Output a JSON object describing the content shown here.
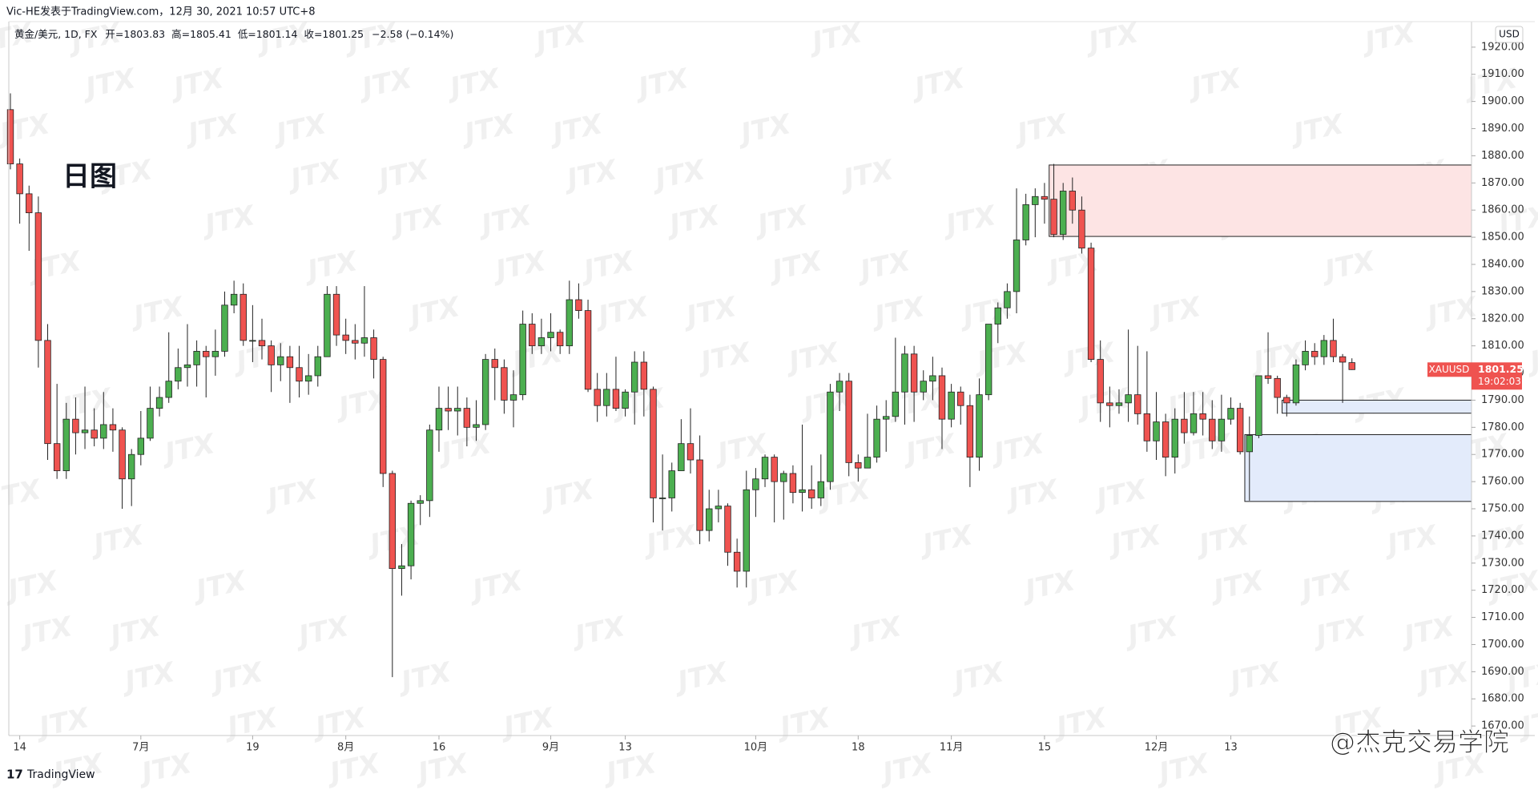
{
  "header": "Vic-HE发表于TradingView.com，12月 30, 2021 10:57 UTC+8",
  "legend": {
    "symbol": "黄金/美元, 1D, FX",
    "open_label": "开=",
    "high_label": "高=",
    "low_label": "低=",
    "close_label": "收=",
    "change": "−2.58 (−0.14%)"
  },
  "annotation": "日图",
  "currency": "USD",
  "symbol_tag": "XAUUSD",
  "countdown": "19:02:03",
  "watermark": "JTX",
  "brand": "TradingView",
  "credit": "@杰克交易学院",
  "chart_data": {
    "type": "candlestick",
    "categories": [
      null,
      "14",
      null,
      null,
      null,
      null,
      null,
      null,
      null,
      null,
      null,
      null,
      null,
      null,
      "7月",
      null,
      null,
      null,
      null,
      null,
      null,
      null,
      null,
      null,
      null,
      null,
      "19",
      null,
      null,
      null,
      null,
      null,
      null,
      null,
      null,
      null,
      "8月",
      null,
      null,
      null,
      null,
      null,
      null,
      null,
      null,
      null,
      "16",
      null,
      null,
      null,
      null,
      null,
      null,
      null,
      null,
      null,
      null,
      null,
      "9月",
      null,
      null,
      null,
      null,
      null,
      null,
      null,
      "13",
      null,
      null,
      null,
      null,
      null,
      null,
      null,
      null,
      null,
      null,
      null,
      null,
      null,
      "10月",
      null,
      null,
      null,
      null,
      null,
      null,
      null,
      null,
      null,
      null,
      "18",
      null,
      null,
      null,
      null,
      null,
      null,
      null,
      null,
      null,
      "11月",
      null,
      null,
      null,
      null,
      null,
      null,
      null,
      null,
      null,
      "15",
      null,
      null,
      null,
      null,
      null,
      null,
      null,
      null,
      null,
      null,
      null,
      "12月",
      null,
      null,
      null,
      null,
      null,
      null,
      null,
      "13",
      null,
      null,
      null,
      null,
      null,
      null,
      null,
      null,
      null,
      null,
      null,
      null,
      null
    ],
    "open": [
      1897,
      1877,
      1866,
      1859,
      1812,
      1774,
      1764,
      1783,
      1778,
      1779,
      1776,
      1781,
      1779,
      1761,
      1770,
      1776,
      1787,
      1791,
      1797,
      1802,
      1803,
      1808,
      1806,
      1808,
      1825,
      1829,
      1812,
      1812,
      1810,
      1803,
      1806,
      1802,
      1797,
      1799,
      1806,
      1829,
      1814,
      1812,
      1811,
      1813,
      1805,
      1763,
      1728,
      1729,
      1752,
      1753,
      1779,
      1787,
      1786,
      1787,
      1780,
      1781,
      1805,
      1802,
      1790,
      1792,
      1818,
      1810,
      1813,
      1815,
      1810,
      1827,
      1823,
      1794,
      1788,
      1794,
      1787,
      1793,
      1804,
      1794,
      1754,
      1754,
      1764,
      1774,
      1768,
      1742,
      1750,
      1751,
      1734,
      1727,
      1757,
      1761,
      1769,
      1760,
      1763,
      1756,
      1757,
      1754,
      1760,
      1793,
      1797,
      1767,
      1765,
      1769,
      1783,
      1784,
      1793,
      1807,
      1793,
      1797,
      1799,
      1783,
      1793,
      1788,
      1769,
      1792,
      1818,
      1824,
      1830,
      1849,
      1862,
      1865,
      1864,
      1851,
      1867,
      1860,
      1846,
      1805,
      1789,
      1788,
      1789,
      1792,
      1785,
      1775,
      1782,
      1769,
      1783,
      1778,
      1785,
      1783,
      1775,
      1783,
      1787,
      1771,
      1777,
      1799,
      1798,
      1791,
      1789,
      1803,
      1808,
      1806,
      1812,
      1806,
      1803.83
    ],
    "high": [
      1903,
      1879,
      1869,
      1865,
      1818,
      1796,
      1789,
      1791,
      1795,
      1787,
      1793,
      1787,
      1780,
      1772,
      1786,
      1795,
      1795,
      1815,
      1809,
      1818,
      1812,
      1810,
      1816,
      1830,
      1834,
      1833,
      1825,
      1820,
      1812,
      1811,
      1810,
      1810,
      1807,
      1810,
      1832,
      1832,
      1820,
      1818,
      1832,
      1816,
      1806,
      1764,
      1737,
      1753,
      1755,
      1781,
      1795,
      1795,
      1795,
      1791,
      1790,
      1807,
      1809,
      1805,
      1801,
      1823,
      1822,
      1820,
      1822,
      1816,
      1834,
      1833,
      1827,
      1800,
      1800,
      1806,
      1794,
      1808,
      1808,
      1795,
      1770,
      1767,
      1783,
      1787,
      1777,
      1757,
      1757,
      1752,
      1739,
      1764,
      1765,
      1770,
      1770,
      1764,
      1766,
      1781,
      1766,
      1770,
      1796,
      1800,
      1800,
      1770,
      1785,
      1788,
      1790,
      1813,
      1810,
      1810,
      1801,
      1806,
      1802,
      1796,
      1795,
      1792,
      1798,
      1818,
      1826,
      1833,
      1868,
      1866,
      1868,
      1870,
      1877,
      1870,
      1872,
      1865,
      1848,
      1812,
      1795,
      1794,
      1816,
      1810,
      1808,
      1793,
      1785,
      1787,
      1793,
      1793,
      1793,
      1790,
      1792,
      1791,
      1789,
      1784,
      1799,
      1815,
      1799,
      1792,
      1805,
      1812,
      1811,
      1814,
      1820,
      1807,
      1805.41
    ],
    "low": [
      1875,
      1855,
      1845,
      1802,
      1768,
      1761,
      1761,
      1770,
      1772,
      1773,
      1772,
      1771,
      1750,
      1751,
      1766,
      1775,
      1784,
      1789,
      1794,
      1795,
      1795,
      1791,
      1799,
      1806,
      1822,
      1810,
      1804,
      1805,
      1793,
      1797,
      1789,
      1791,
      1792,
      1795,
      1806,
      1810,
      1807,
      1805,
      1806,
      1798,
      1758,
      1688,
      1718,
      1724,
      1744,
      1747,
      1771,
      1779,
      1777,
      1773,
      1775,
      1779,
      1790,
      1785,
      1780,
      1790,
      1807,
      1807,
      1808,
      1807,
      1807,
      1820,
      1793,
      1782,
      1784,
      1786,
      1784,
      1781,
      1784,
      1745,
      1742,
      1749,
      1764,
      1763,
      1737,
      1738,
      1745,
      1729,
      1721,
      1721,
      1747,
      1758,
      1745,
      1746,
      1752,
      1749,
      1750,
      1751,
      1757,
      1786,
      1762,
      1760,
      1765,
      1767,
      1771,
      1782,
      1781,
      1782,
      1790,
      1790,
      1772,
      1780,
      1781,
      1758,
      1764,
      1790,
      1811,
      1820,
      1822,
      1847,
      1850,
      1855,
      1850,
      1849,
      1855,
      1844,
      1804,
      1782,
      1780,
      1785,
      1782,
      1781,
      1771,
      1768,
      1762,
      1763,
      1774,
      1777,
      1777,
      1772,
      1771,
      1781,
      1770,
      1753,
      1776,
      1796,
      1785,
      1784,
      1788,
      1801,
      1803,
      1803,
      1804,
      1789,
      1801.14
    ],
    "close": [
      1877,
      1866,
      1859,
      1812,
      1774,
      1764,
      1783,
      1778,
      1779,
      1776,
      1781,
      1779,
      1761,
      1770,
      1776,
      1787,
      1791,
      1797,
      1802,
      1803,
      1808,
      1806,
      1808,
      1825,
      1829,
      1812,
      1812,
      1810,
      1803,
      1806,
      1802,
      1797,
      1799,
      1806,
      1829,
      1814,
      1812,
      1811,
      1813,
      1805,
      1763,
      1728,
      1729,
      1752,
      1753,
      1779,
      1787,
      1786,
      1787,
      1780,
      1781,
      1805,
      1802,
      1790,
      1792,
      1818,
      1810,
      1813,
      1815,
      1810,
      1827,
      1823,
      1794,
      1788,
      1794,
      1787,
      1793,
      1804,
      1794,
      1754,
      1754,
      1764,
      1774,
      1768,
      1742,
      1750,
      1751,
      1734,
      1727,
      1757,
      1761,
      1769,
      1760,
      1763,
      1756,
      1757,
      1754,
      1760,
      1793,
      1797,
      1767,
      1765,
      1769,
      1783,
      1784,
      1793,
      1807,
      1793,
      1797,
      1799,
      1783,
      1793,
      1788,
      1769,
      1792,
      1818,
      1824,
      1830,
      1849,
      1862,
      1865,
      1864,
      1851,
      1867,
      1860,
      1846,
      1805,
      1789,
      1788,
      1789,
      1792,
      1785,
      1775,
      1782,
      1769,
      1783,
      1778,
      1785,
      1783,
      1775,
      1783,
      1787,
      1771,
      1777,
      1799,
      1798,
      1791,
      1789,
      1803,
      1808,
      1806,
      1812,
      1806,
      1804,
      1801.25
    ],
    "up_color": "#4caf50",
    "down_color": "#ef5350",
    "ylim": [
      1666.5,
      1929.4
    ],
    "yticks": [
      {
        "value": 1670,
        "label": "1670.00"
      },
      {
        "value": 1680,
        "label": "1680.00"
      },
      {
        "value": 1690,
        "label": "1690.00"
      },
      {
        "value": 1700,
        "label": "1700.00"
      },
      {
        "value": 1710,
        "label": "1710.00"
      },
      {
        "value": 1720,
        "label": "1720.00"
      },
      {
        "value": 1730,
        "label": "1730.00"
      },
      {
        "value": 1740,
        "label": "1740.00"
      },
      {
        "value": 1750,
        "label": "1750.00"
      },
      {
        "value": 1760,
        "label": "1760.00"
      },
      {
        "value": 1770,
        "label": "1770.00"
      },
      {
        "value": 1780,
        "label": "1780.00"
      },
      {
        "value": 1790,
        "label": "1790.00"
      },
      {
        "value": 1800,
        "label": "1800.00"
      },
      {
        "value": 1810,
        "label": "1810.00"
      },
      {
        "value": 1820,
        "label": "1820.00"
      },
      {
        "value": 1830,
        "label": "1830.00"
      },
      {
        "value": 1840,
        "label": "1840.00"
      },
      {
        "value": 1850,
        "label": "1850.00"
      },
      {
        "value": 1860,
        "label": "1860.00"
      },
      {
        "value": 1870,
        "label": "1870.00"
      },
      {
        "value": 1880,
        "label": "1880.00"
      },
      {
        "value": 1890,
        "label": "1890.00"
      },
      {
        "value": 1900,
        "label": "1900.00"
      },
      {
        "value": 1910,
        "label": "1910.00"
      },
      {
        "value": 1920,
        "label": "1920.00"
      }
    ],
    "grid": false,
    "zones": [
      {
        "from": 1850.3,
        "to": 1876.6,
        "start": 112,
        "color": "#fde4e4"
      },
      {
        "from": 1785.2,
        "to": 1790,
        "start": 137,
        "color": "#e3ebfb"
      },
      {
        "from": 1752.7,
        "to": 1777.3,
        "start": 133,
        "color": "#e3ebfb"
      }
    ]
  }
}
